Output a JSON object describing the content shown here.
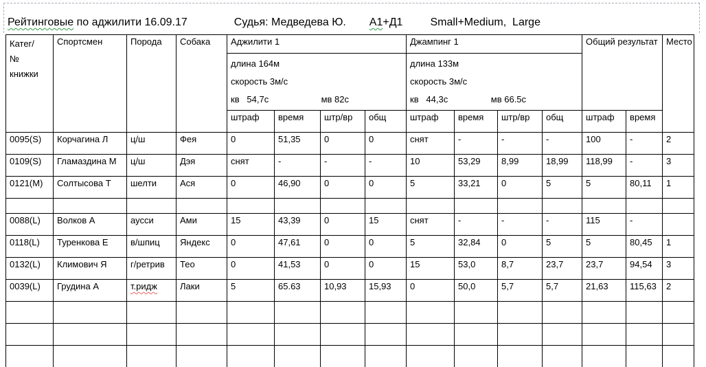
{
  "title": {
    "part_rated": "Рейтинговые",
    "part_rest": " по аджилити 16.09.17",
    "judge": "Судья: Медведева Ю.",
    "class_a1": "А1",
    "class_d1": "+Д1",
    "sizes": "Small+Medium,  Large"
  },
  "table": {
    "col_headers": {
      "kat": "Катег/\n№\nкнижки",
      "sportsman": "Спортсмен",
      "poroda": "Порода",
      "sobaka": "Собака",
      "total": "Общий результат",
      "mesto": "Место"
    },
    "agility": {
      "title": "Аджилити 1",
      "length": "длина 164м",
      "speed": "скорость 3м/с",
      "kv": "кв   54,7с",
      "mv": "мв 82с"
    },
    "jumping": {
      "title": "Джампинг 1",
      "length": "длина 133м",
      "speed": "скорость 3м/с",
      "kv": "кв   44,3с",
      "mv": "мв 66.5с"
    },
    "sub_labels": {
      "penalty": "штраф",
      "time": "время",
      "pt": "штр/вр",
      "total": "общ"
    },
    "misspelled": [
      "т.ридж"
    ],
    "rows": [
      [
        "0095(S)",
        "Корчагина Л",
        "ц/ш",
        "Фея",
        "0",
        "51,35",
        "0",
        "0",
        "снят",
        "-",
        "-",
        "-",
        "100",
        "-",
        "2"
      ],
      [
        "0109(S)",
        "Гламаздина М",
        "ц/ш",
        "Дэя",
        "снят",
        "-",
        "-",
        "-",
        "10",
        "53,29",
        "8,99",
        "18,99",
        "118,99",
        "-",
        "3"
      ],
      [
        "0121(M)",
        "Солтысова Т",
        "шелти",
        "Ася",
        "0",
        "46,90",
        "0",
        "0",
        "5",
        "33,21",
        "0",
        "5",
        "5",
        "80,11",
        "1"
      ],
      [],
      [
        "0088(L)",
        "Волков А",
        "аусси",
        "Ами",
        "15",
        "43,39",
        "0",
        "15",
        "снят",
        "-",
        "-",
        "-",
        "115",
        "-",
        ""
      ],
      [
        "0118(L)",
        "Туренкова Е",
        "в/шпиц",
        "Яндекс",
        "0",
        "47,61",
        "0",
        "0",
        "5",
        "32,84",
        "0",
        "5",
        "5",
        "80,45",
        "1"
      ],
      [
        "0132(L)",
        "Климович Я",
        "г/ретрив",
        "Тео",
        "0",
        "41,53",
        "0",
        "0",
        "15",
        "53,0",
        "8,7",
        "23,7",
        "23,7",
        "94,54",
        "3"
      ],
      [
        "0039(L)",
        "Грудина А",
        "т.ридж",
        "Лаки",
        "5",
        "65.63",
        "10,93",
        "15,93",
        "0",
        "50,0",
        "5,7",
        "5,7",
        "21,63",
        "115,63",
        "2"
      ],
      [],
      [],
      []
    ]
  }
}
